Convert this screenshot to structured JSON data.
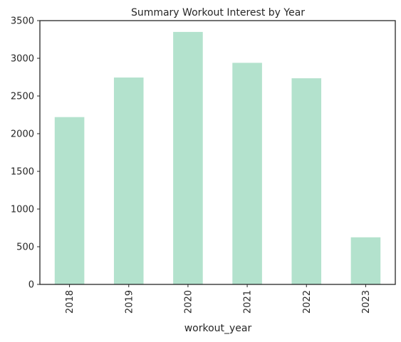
{
  "chart_data": {
    "type": "bar",
    "title": "Summary Workout Interest by Year",
    "xlabel": "workout_year",
    "ylabel": "",
    "categories": [
      "2018",
      "2019",
      "2020",
      "2021",
      "2022",
      "2023"
    ],
    "values": [
      2220,
      2745,
      3350,
      2940,
      2735,
      625
    ],
    "ylim": [
      0,
      3500
    ],
    "yticks": [
      0,
      500,
      1000,
      1500,
      2000,
      2500,
      3000,
      3500
    ],
    "bar_color": "#b3e2cd",
    "grid": false,
    "legend": "none"
  }
}
